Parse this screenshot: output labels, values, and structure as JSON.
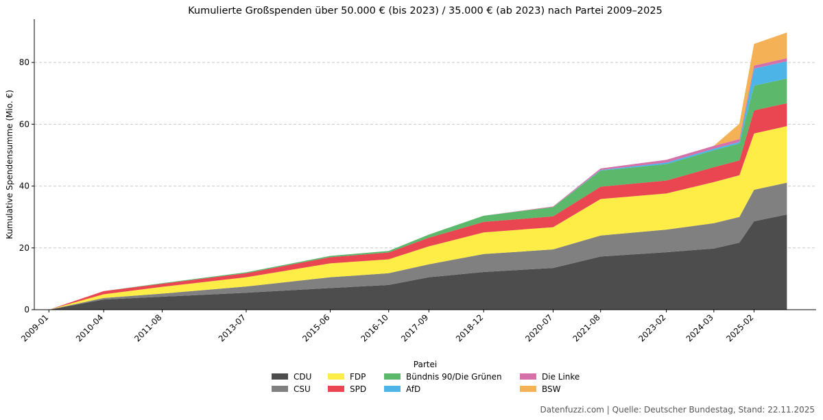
{
  "chart_data": {
    "type": "area",
    "stacked": true,
    "title": "Kumulierte Großspenden über 50.000 € (bis 2023) / 35.000 € (ab 2023) nach Partei 2009–2025",
    "xlabel": "",
    "ylabel": "Kumulative Spendensumme (Mio. €)",
    "ylim": [
      0,
      94
    ],
    "yticks": [
      0,
      20,
      40,
      60,
      80
    ],
    "xlim": [
      "2008-09",
      "2026-07"
    ],
    "xticks": [
      "2009-01",
      "2010-04",
      "2011-08",
      "2013-07",
      "2015-06",
      "2016-10",
      "2017-09",
      "2018-12",
      "2020-07",
      "2021-08",
      "2023-02",
      "2024-03",
      "2025-02"
    ],
    "grid": "horizontal-dashed",
    "legend_title": "Partei",
    "legend_position": "bottom-center",
    "x": [
      "2009-01",
      "2010-04",
      "2011-08",
      "2013-07",
      "2015-06",
      "2016-10",
      "2017-09",
      "2018-12",
      "2020-07",
      "2021-08",
      "2023-02",
      "2024-03",
      "2024-10",
      "2025-02",
      "2025-11"
    ],
    "series": [
      {
        "name": "CDU",
        "color": "#4d4d4d",
        "values": [
          0,
          3.3,
          4.2,
          5.5,
          7.0,
          8.0,
          10.5,
          12.2,
          13.5,
          17.2,
          18.6,
          19.8,
          21.7,
          28.6,
          30.8
        ]
      },
      {
        "name": "CSU",
        "color": "#808080",
        "values": [
          0,
          0.5,
          1.0,
          2.0,
          3.5,
          3.8,
          4.2,
          5.8,
          6.0,
          6.8,
          7.3,
          8.2,
          8.3,
          10.2,
          10.3
        ]
      },
      {
        "name": "FDP",
        "color": "#ffed47",
        "values": [
          0,
          1.2,
          2.2,
          3.0,
          4.5,
          4.5,
          5.8,
          7.0,
          7.2,
          11.8,
          11.7,
          13.3,
          13.5,
          18.2,
          18.3
        ]
      },
      {
        "name": "SPD",
        "color": "#e94652",
        "values": [
          0,
          1.0,
          1.0,
          1.3,
          2.0,
          2.2,
          2.8,
          3.4,
          3.5,
          4.0,
          4.2,
          4.8,
          4.8,
          7.5,
          7.4
        ]
      },
      {
        "name": "Bündnis 90/Die Grünen",
        "color": "#5cb86b",
        "values": [
          0,
          0,
          0.2,
          0.3,
          0.4,
          0.5,
          1.0,
          2.0,
          3.0,
          5.2,
          5.3,
          5.5,
          5.5,
          8.0,
          8.0
        ]
      },
      {
        "name": "AfD",
        "color": "#4db4e8",
        "values": [
          0,
          0,
          0,
          0,
          0,
          0,
          0,
          0,
          0,
          0.2,
          0.5,
          0.5,
          0.5,
          5.5,
          5.6
        ]
      },
      {
        "name": "Die Linke",
        "color": "#d670a8",
        "values": [
          0,
          0,
          0,
          0,
          0,
          0,
          0,
          0,
          0.2,
          0.5,
          0.9,
          0.9,
          0.9,
          1.0,
          1.0
        ]
      },
      {
        "name": "BSW",
        "color": "#f5b155",
        "values": [
          0,
          0,
          0,
          0,
          0,
          0,
          0,
          0,
          0,
          0,
          0,
          0,
          5.0,
          7.0,
          8.3
        ]
      }
    ]
  },
  "footer": "Datenfuzzi.com | Quelle: Deutscher Bundestag, Stand: 22.11.2025"
}
